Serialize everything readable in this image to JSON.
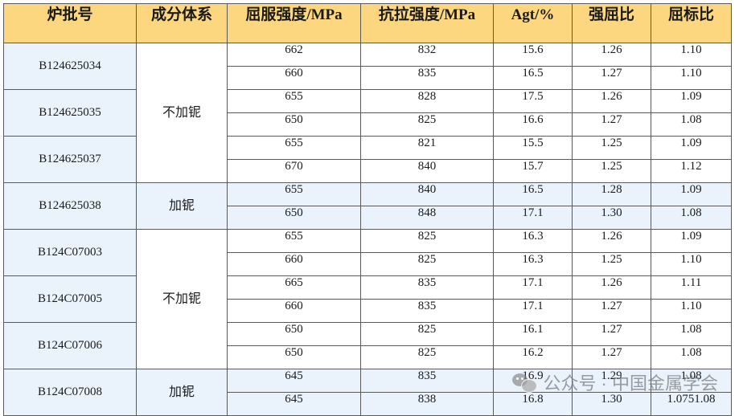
{
  "header": {
    "batch": "炉批号",
    "system": "成分体系",
    "yield": "屈服强度/MPa",
    "tensile": "抗拉强度/MPa",
    "agt": "Agt/%",
    "strength_yield_ratio": "强屈比",
    "yield_std_ratio": "屈标比"
  },
  "batches": [
    {
      "id": "B124625034",
      "rows": [
        {
          "yield": "662",
          "tensile": "832",
          "agt": "15.6",
          "ratio": "1.26",
          "std_ratio": "1.10"
        },
        {
          "yield": "660",
          "tensile": "835",
          "agt": "16.5",
          "ratio": "1.27",
          "std_ratio": "1.10"
        }
      ]
    },
    {
      "id": "B124625035",
      "rows": [
        {
          "yield": "655",
          "tensile": "828",
          "agt": "17.5",
          "ratio": "1.26",
          "std_ratio": "1.09"
        },
        {
          "yield": "650",
          "tensile": "825",
          "agt": "16.6",
          "ratio": "1.27",
          "std_ratio": "1.08"
        }
      ]
    },
    {
      "id": "B124625037",
      "rows": [
        {
          "yield": "655",
          "tensile": "821",
          "agt": "15.5",
          "ratio": "1.25",
          "std_ratio": "1.09"
        },
        {
          "yield": "670",
          "tensile": "840",
          "agt": "15.7",
          "ratio": "1.25",
          "std_ratio": "1.12"
        }
      ]
    },
    {
      "id": "B124625038",
      "rows": [
        {
          "yield": "655",
          "tensile": "840",
          "agt": "16.5",
          "ratio": "1.28",
          "std_ratio": "1.09"
        },
        {
          "yield": "650",
          "tensile": "848",
          "agt": "17.1",
          "ratio": "1.30",
          "std_ratio": "1.08"
        }
      ]
    },
    {
      "id": "B124C07003",
      "rows": [
        {
          "yield": "655",
          "tensile": "825",
          "agt": "16.3",
          "ratio": "1.26",
          "std_ratio": "1.09"
        },
        {
          "yield": "660",
          "tensile": "825",
          "agt": "16.3",
          "ratio": "1.25",
          "std_ratio": "1.10"
        }
      ]
    },
    {
      "id": "B124C07005",
      "rows": [
        {
          "yield": "665",
          "tensile": "835",
          "agt": "17.1",
          "ratio": "1.26",
          "std_ratio": "1.11"
        },
        {
          "yield": "660",
          "tensile": "835",
          "agt": "17.1",
          "ratio": "1.27",
          "std_ratio": "1.10"
        }
      ]
    },
    {
      "id": "B124C07006",
      "rows": [
        {
          "yield": "650",
          "tensile": "825",
          "agt": "16.1",
          "ratio": "1.27",
          "std_ratio": "1.08"
        },
        {
          "yield": "650",
          "tensile": "825",
          "agt": "16.2",
          "ratio": "1.27",
          "std_ratio": "1.08"
        }
      ]
    },
    {
      "id": "B124C07008",
      "rows": [
        {
          "yield": "645",
          "tensile": "835",
          "agt": "16.9",
          "ratio": "1.29",
          "std_ratio": "1.08"
        },
        {
          "yield": "645",
          "tensile": "838",
          "agt": "16.8",
          "ratio": "1.30",
          "std_ratio": "1.0751.08"
        }
      ]
    }
  ],
  "systems": [
    {
      "label": "不加铌",
      "span_batches": 3
    },
    {
      "label": "加铌",
      "span_batches": 1
    },
    {
      "label": "不加铌",
      "span_batches": 3
    },
    {
      "label": "加铌",
      "span_batches": 1
    }
  ],
  "watermark": {
    "text": "公众号 · 中国金属学会"
  },
  "colors": {
    "header_bg": "#fcd77f",
    "band_blue": "#eaf3fc",
    "border": "#5a5a5a"
  }
}
